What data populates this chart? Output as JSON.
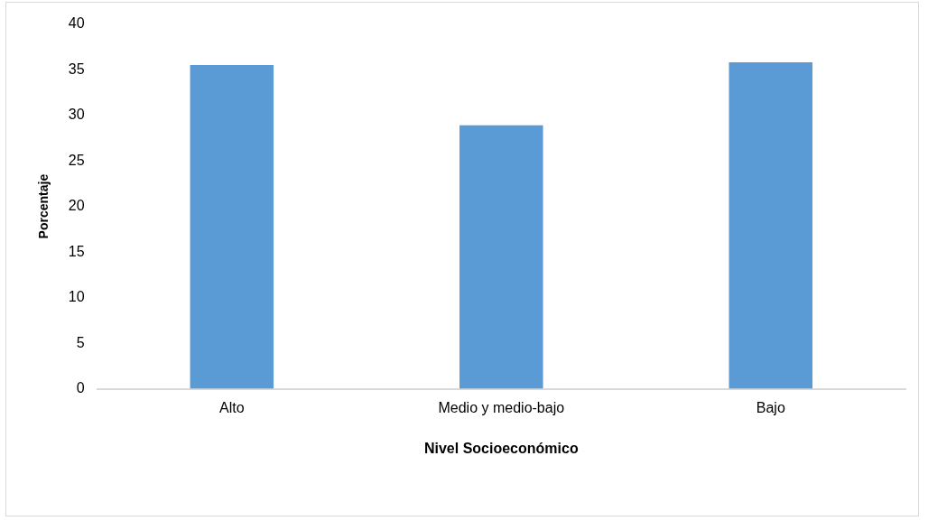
{
  "chart_data": {
    "type": "bar",
    "xlabel": "Nivel Socioeconómico",
    "ylabel": "Porcentaje",
    "categories": [
      "Alto",
      "Medio y medio-bajo",
      "Bajo"
    ],
    "values": [
      35.5,
      28.9,
      35.8
    ],
    "color": "#5b9bd5",
    "ylim": [
      0,
      40
    ],
    "yticks": [
      0,
      5,
      10,
      15,
      20,
      25,
      30,
      35,
      40
    ],
    "grid": false,
    "legend": false
  }
}
